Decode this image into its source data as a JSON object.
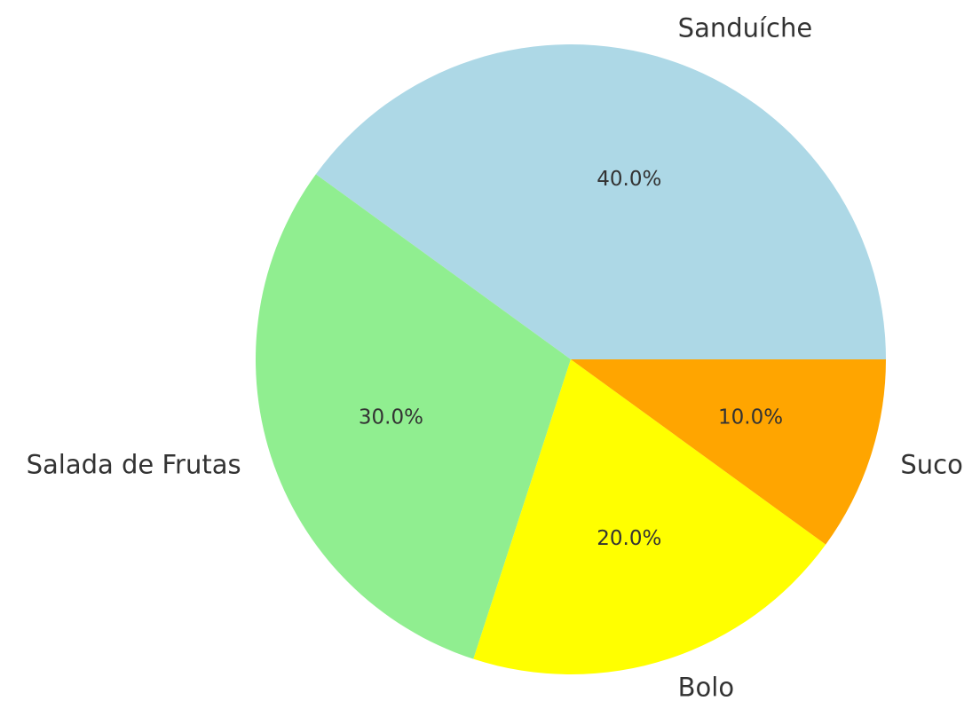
{
  "chart_data": {
    "type": "pie",
    "categories": [
      "Sanduíche",
      "Salada de Frutas",
      "Bolo",
      "Suco"
    ],
    "values": [
      40,
      30,
      20,
      10
    ],
    "value_labels": [
      "40.0%",
      "30.0%",
      "20.0%",
      "10.0%"
    ],
    "colors": [
      "#add8e6",
      "#90ee90",
      "#ffff00",
      "#ffa500"
    ]
  }
}
